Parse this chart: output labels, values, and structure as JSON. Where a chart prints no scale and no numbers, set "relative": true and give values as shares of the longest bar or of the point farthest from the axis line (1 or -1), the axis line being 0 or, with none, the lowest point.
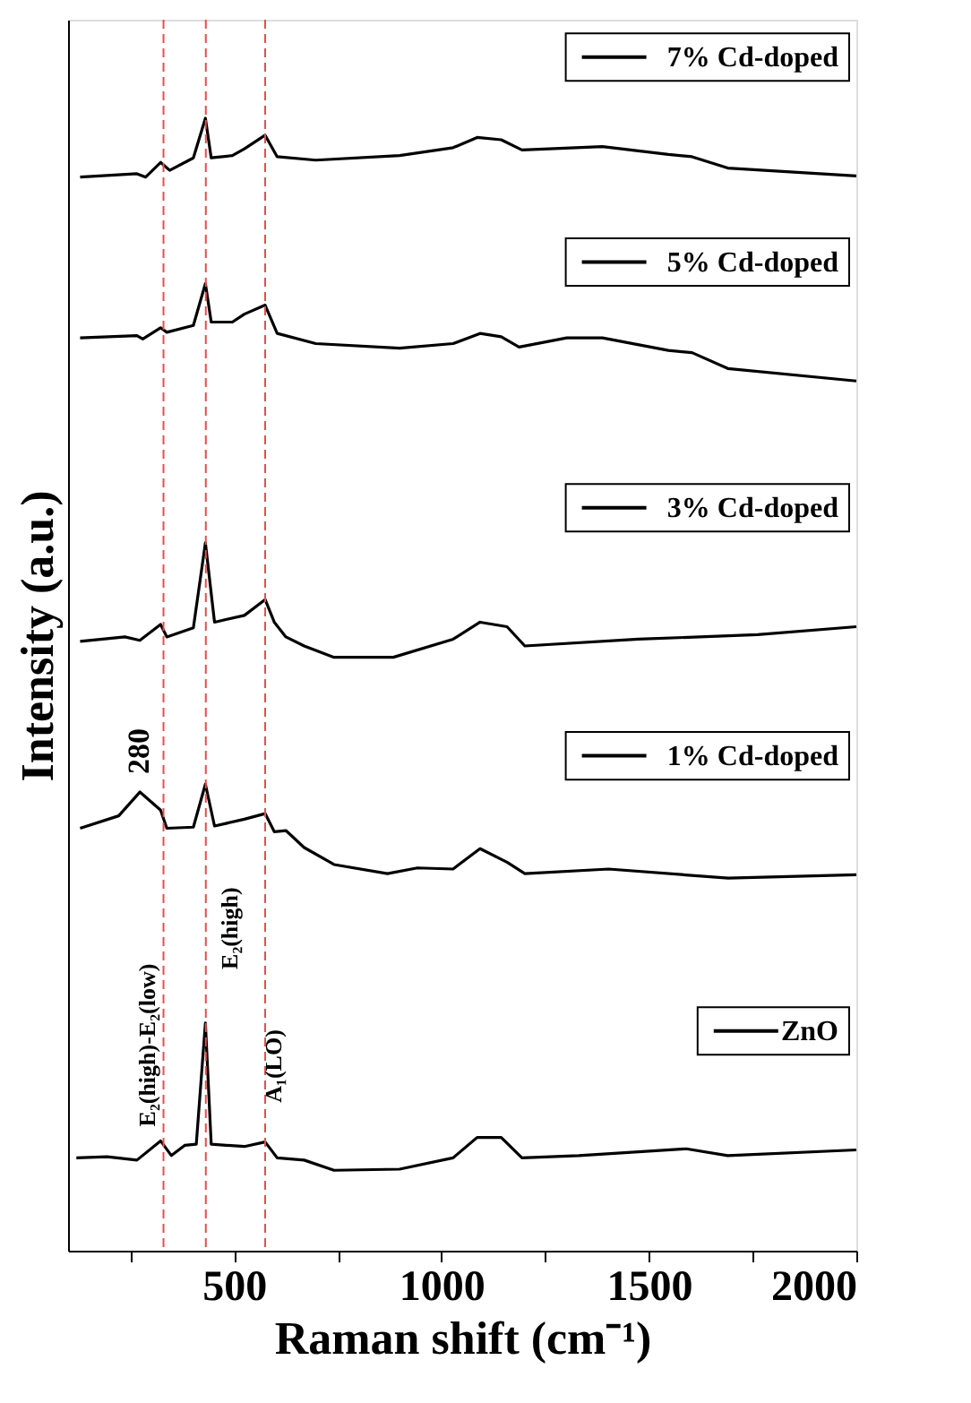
{
  "chart_data": {
    "type": "line",
    "relative": true,
    "xlabel": "Raman shift (cm⁻¹)",
    "ylabel": "Intensity (a.u.)",
    "xlim": [
      100,
      2000
    ],
    "xticks": [
      {
        "value": 250,
        "label": null
      },
      500,
      {
        "value": 750,
        "label": null
      },
      1000,
      {
        "value": 1250,
        "label": null
      },
      1500,
      {
        "value": 1750,
        "label": null
      },
      2000
    ],
    "tick_labels": "x",
    "grid": false,
    "legend": "right",
    "line_style": "solid",
    "marker": "none",
    "series": [
      {
        "name": "ZnO",
        "color": "#000000",
        "x": [
          120,
          194,
          266,
          323,
          349,
          381,
          409,
          431,
          445,
          525,
          575,
          604,
          669,
          741,
          899,
          1028,
          1086,
          1144,
          1194,
          1331,
          1590,
          1690,
          2000
        ],
        "values": [
          0.082,
          0.083,
          0.08,
          0.097,
          0.084,
          0.093,
          0.094,
          0.201,
          0.094,
          0.092,
          0.096,
          0.082,
          0.08,
          0.071,
          0.072,
          0.082,
          0.1,
          0.1,
          0.082,
          0.084,
          0.09,
          0.084,
          0.089
        ]
      },
      {
        "name": "1% Cd-doped",
        "color": "#000000",
        "x": [
          129,
          222,
          273,
          323,
          338,
          402,
          431,
          453,
          525,
          575,
          597,
          625,
          669,
          741,
          870,
          942,
          1028,
          1093,
          1158,
          1201,
          1403,
          1691,
          2000
        ],
        "values": [
          0.373,
          0.384,
          0.405,
          0.389,
          0.373,
          0.374,
          0.412,
          0.375,
          0.381,
          0.386,
          0.37,
          0.371,
          0.356,
          0.341,
          0.333,
          0.338,
          0.337,
          0.355,
          0.343,
          0.333,
          0.337,
          0.329,
          0.332
        ]
      },
      {
        "name": "3% Cd-doped",
        "color": "#000000",
        "x": [
          129,
          237,
          273,
          323,
          338,
          402,
          431,
          453,
          525,
          575,
          597,
          625,
          669,
          741,
          884,
          1028,
          1093,
          1158,
          1201,
          1475,
          1762,
          2000
        ],
        "values": [
          0.538,
          0.542,
          0.539,
          0.553,
          0.542,
          0.55,
          0.625,
          0.555,
          0.561,
          0.575,
          0.555,
          0.542,
          0.534,
          0.524,
          0.524,
          0.54,
          0.555,
          0.551,
          0.534,
          0.54,
          0.544,
          0.551
        ]
      },
      {
        "name": "5% Cd-doped",
        "color": "#000000",
        "x": [
          129,
          266,
          280,
          323,
          338,
          402,
          431,
          445,
          496,
          525,
          575,
          604,
          697,
          899,
          1028,
          1093,
          1144,
          1187,
          1302,
          1388,
          1547,
          1604,
          1690,
          2000
        ],
        "values": [
          0.806,
          0.808,
          0.805,
          0.815,
          0.811,
          0.817,
          0.854,
          0.82,
          0.82,
          0.827,
          0.835,
          0.81,
          0.801,
          0.797,
          0.801,
          0.81,
          0.807,
          0.798,
          0.806,
          0.806,
          0.795,
          0.793,
          0.779,
          0.768
        ]
      },
      {
        "name": "7% Cd-doped",
        "color": "#000000",
        "x": [
          129,
          266,
          287,
          323,
          345,
          402,
          431,
          445,
          496,
          525,
          575,
          604,
          697,
          899,
          1028,
          1086,
          1144,
          1194,
          1388,
          1547,
          1604,
          1690,
          2000
        ],
        "values": [
          0.948,
          0.951,
          0.948,
          0.961,
          0.954,
          0.965,
          1.0,
          0.965,
          0.967,
          0.973,
          0.985,
          0.966,
          0.963,
          0.967,
          0.974,
          0.983,
          0.981,
          0.972,
          0.975,
          0.968,
          0.966,
          0.956,
          0.949
        ]
      }
    ],
    "ref_lines": [
      {
        "axis": "x",
        "value": 330,
        "color": "#e05050",
        "line_style": "dashed"
      },
      {
        "axis": "x",
        "value": 432,
        "color": "#e05050",
        "line_style": "dashed"
      },
      {
        "axis": "x",
        "value": 575,
        "color": "#e05050",
        "line_style": "dashed"
      }
    ],
    "annotations": [
      {
        "text": "280",
        "x": 273,
        "y": 0.405
      },
      {
        "text": "E₂(high)-E₂(low)",
        "x": 323,
        "y": 0.097
      },
      {
        "text": "E₂(high)",
        "x": 431,
        "y": 0.201
      },
      {
        "text": "A₁(LO)",
        "x": 575,
        "y": 0.096
      }
    ]
  }
}
